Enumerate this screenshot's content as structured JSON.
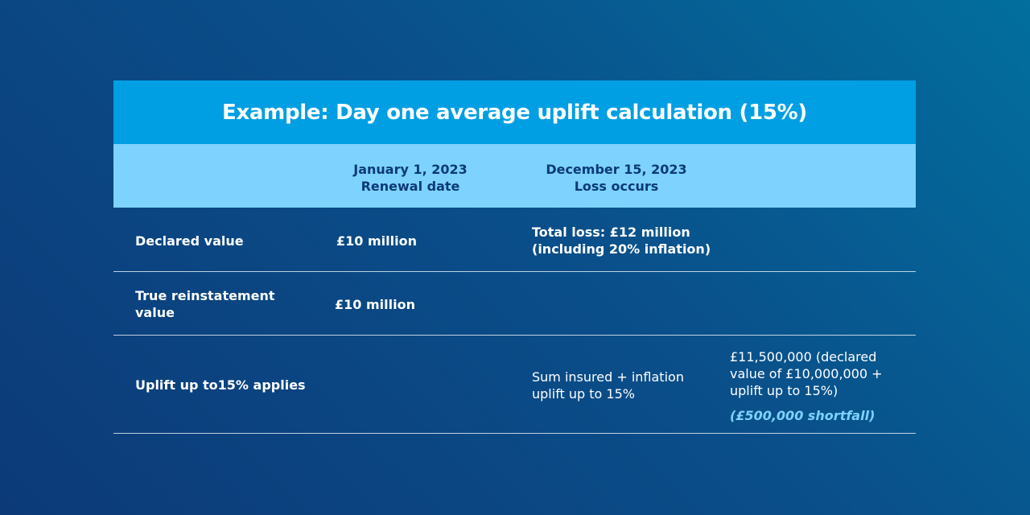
{
  "title": "Example: Day one average uplift calculation (15%)",
  "header": {
    "col1": {
      "date": "January 1, 2023",
      "label": "Renewal date"
    },
    "col2": {
      "date": "December 15, 2023",
      "label": "Loss occurs"
    }
  },
  "rows": [
    {
      "label": "Declared value",
      "renewal": "£10 million",
      "loss_line1": "Total loss: £12 million",
      "loss_line2": "(including 20% inflation)"
    },
    {
      "label_line1": "True reinstatement",
      "label_line2": "value",
      "renewal": "£10 million"
    },
    {
      "label": "Uplift up to15% applies",
      "loss_line1": "Sum insured + inflation",
      "loss_line2": "uplift up to 15%",
      "result_line1": "£11,500,000 (declared",
      "result_line2": "value of £10,000,000 +",
      "result_line3": "uplift up to 15%)",
      "shortfall": "(£500,000 shortfall)"
    }
  ]
}
